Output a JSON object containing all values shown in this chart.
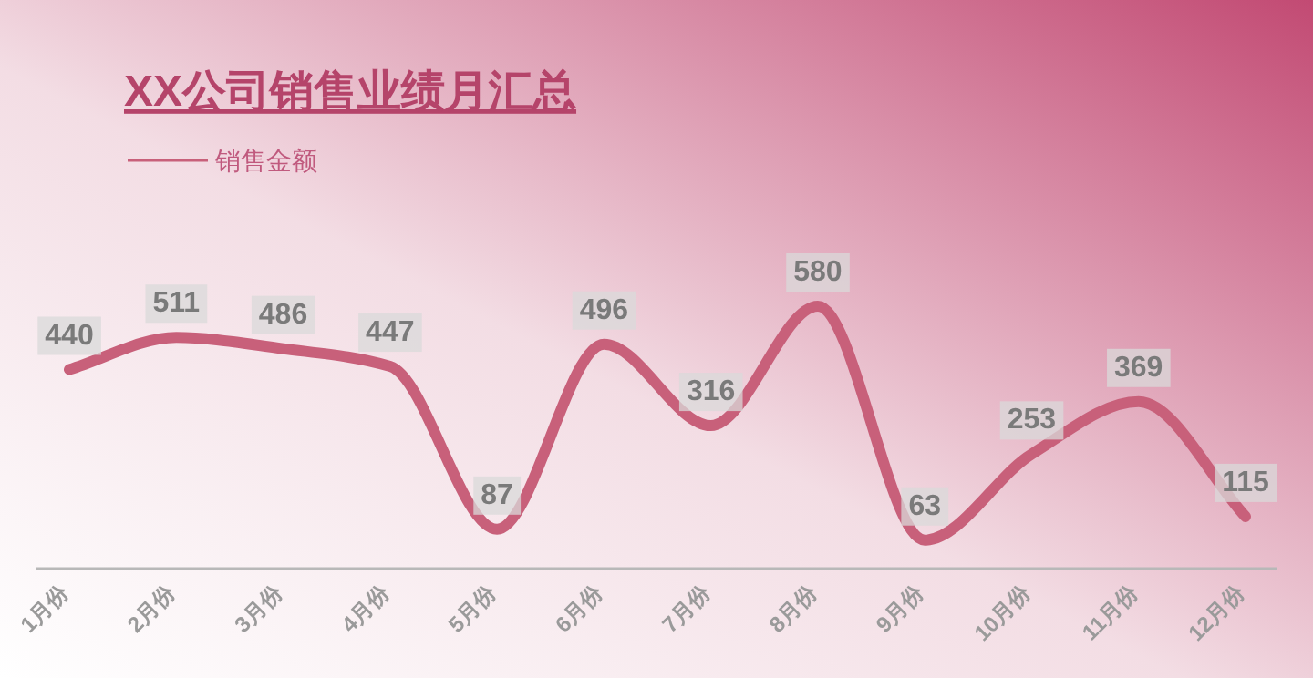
{
  "chart_data": {
    "type": "line",
    "title": "XX公司销售业绩月汇总",
    "categories": [
      "1月份",
      "2月份",
      "3月份",
      "4月份",
      "5月份",
      "6月份",
      "7月份",
      "8月份",
      "9月份",
      "10月份",
      "11月份",
      "12月份"
    ],
    "series": [
      {
        "name": "销售金额",
        "color": "#c8607a",
        "values": [
          440,
          511,
          486,
          447,
          87,
          496,
          316,
          580,
          63,
          253,
          369,
          115
        ]
      }
    ],
    "data_labels": true,
    "legend": "top left",
    "grid": false,
    "marker": "none",
    "line_style": "solid"
  }
}
